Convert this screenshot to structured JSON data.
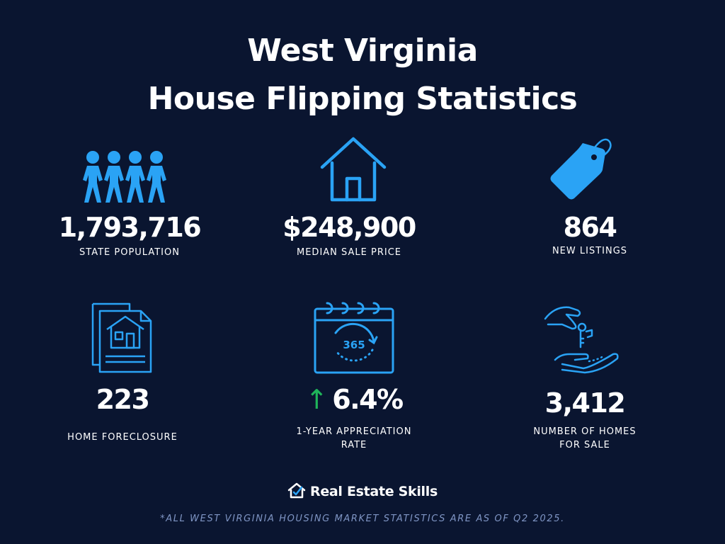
{
  "title": {
    "line1": "West Virginia",
    "line2": "House Flipping Statistics"
  },
  "accent_color": "#2aa3f5",
  "up_arrow_color": "#1fb45a",
  "stats": [
    {
      "value": "1,793,716",
      "label_lines": [
        "STATE POPULATION"
      ],
      "icon": "people-icon"
    },
    {
      "value": "$248,900",
      "label_lines": [
        "MEDIAN SALE PRICE"
      ],
      "icon": "house-icon"
    },
    {
      "value": "864",
      "label_lines": [
        "NEW LISTINGS"
      ],
      "icon": "price-tag-icon"
    },
    {
      "value": "223",
      "label_lines": [
        "HOME FORECLOSURE"
      ],
      "icon": "foreclosure-document-icon"
    },
    {
      "value": "6.4%",
      "arrow": "↑",
      "label_lines": [
        "1-YEAR APPRECIATION",
        "RATE"
      ],
      "icon": "calendar-365-icon"
    },
    {
      "value": "3,412",
      "label_lines": [
        "NUMBER OF HOMES",
        "FOR SALE"
      ],
      "icon": "hand-key-icon"
    }
  ],
  "calendar_text": "365",
  "brand": {
    "name": "Real Estate Skills",
    "icon": "house-check-logo-icon"
  },
  "footnote": "*ALL WEST VIRGINIA HOUSING MARKET STATISTICS ARE AS OF Q2 2025."
}
